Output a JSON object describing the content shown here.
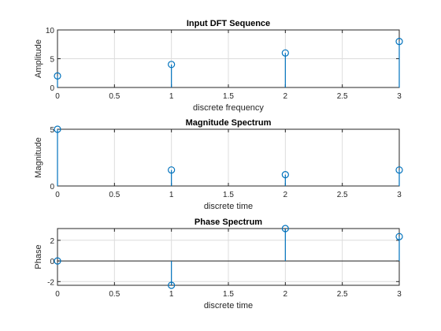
{
  "chart_data": [
    {
      "type": "stem",
      "title": "Input DFT Sequence",
      "xlabel": "discrete frequency",
      "ylabel": "Amplitude",
      "x": [
        0,
        1,
        2,
        3
      ],
      "y": [
        2,
        4,
        6,
        8
      ],
      "xlim": [
        0,
        3
      ],
      "ylim": [
        0,
        10
      ],
      "xticks": [
        0,
        0.5,
        1,
        1.5,
        2,
        2.5,
        3
      ],
      "yticks": [
        0,
        5,
        10
      ],
      "grid": true
    },
    {
      "type": "stem",
      "title": "Magnitude Spectrum",
      "xlabel": "discrete time",
      "ylabel": "Magnitude",
      "x": [
        0,
        1,
        2,
        3
      ],
      "y": [
        5,
        1.41,
        1,
        1.41
      ],
      "xlim": [
        0,
        3
      ],
      "ylim": [
        0,
        5
      ],
      "xticks": [
        0,
        0.5,
        1,
        1.5,
        2,
        2.5,
        3
      ],
      "yticks": [
        0,
        5
      ],
      "grid": true
    },
    {
      "type": "stem",
      "title": "Phase Spectrum",
      "xlabel": "discrete time",
      "ylabel": "Phase",
      "x": [
        0,
        1,
        2,
        3
      ],
      "y": [
        0,
        -2.36,
        3.14,
        2.36
      ],
      "xlim": [
        0,
        3
      ],
      "ylim": [
        -2.36,
        3.14
      ],
      "xticks": [
        0,
        0.5,
        1,
        1.5,
        2,
        2.5,
        3
      ],
      "yticks": [
        -2,
        0,
        2
      ],
      "grid": true,
      "baseline": true
    }
  ]
}
